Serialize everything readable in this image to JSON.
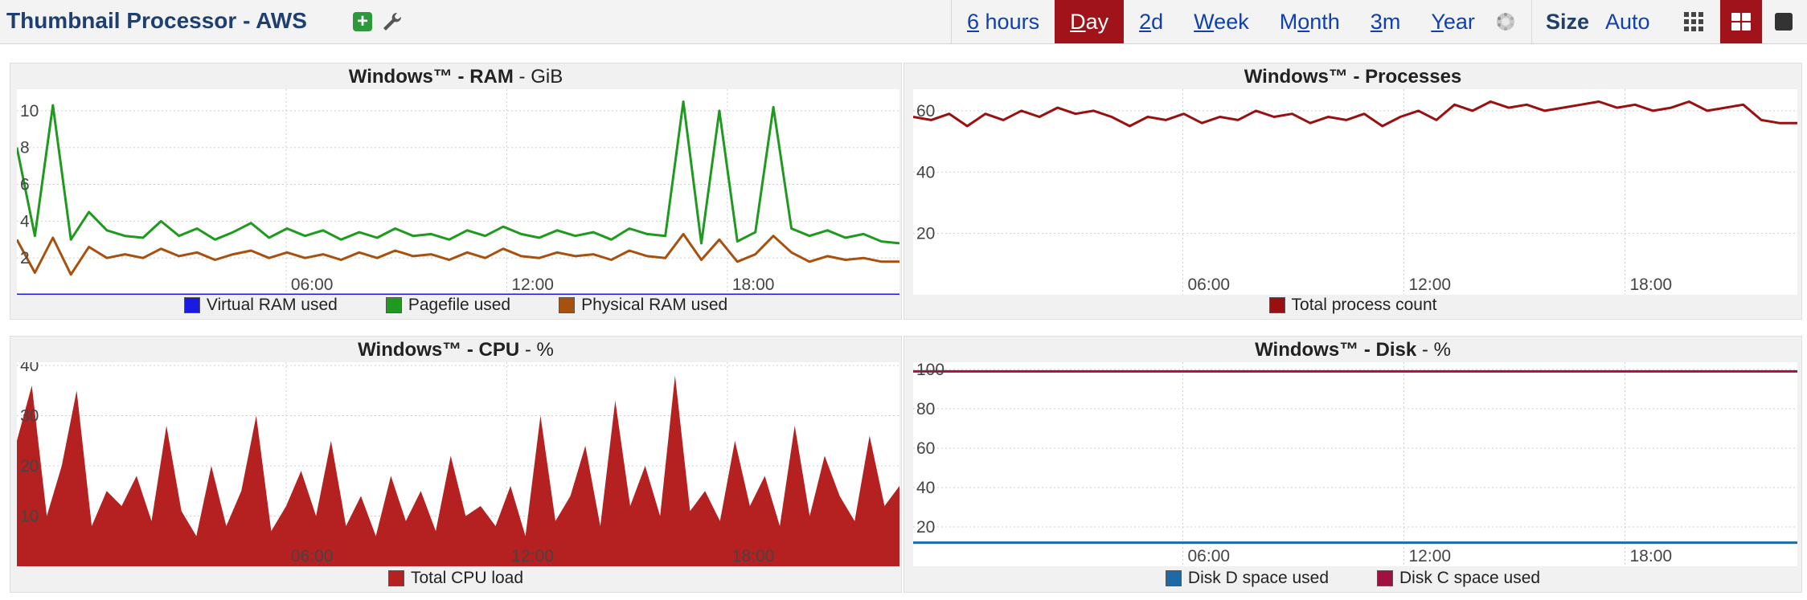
{
  "header": {
    "title": "Thumbnail Processor - AWS",
    "ranges": [
      {
        "pre": "",
        "key": "6",
        "post": " hours",
        "active": false
      },
      {
        "pre": "",
        "key": "D",
        "post": "ay",
        "active": true
      },
      {
        "pre": "",
        "key": "2",
        "post": "d",
        "active": false
      },
      {
        "pre": "",
        "key": "W",
        "post": "eek",
        "active": false
      },
      {
        "pre": "M",
        "key": "o",
        "post": "nth",
        "active": false
      },
      {
        "pre": "",
        "key": "3",
        "post": "m",
        "active": false
      },
      {
        "pre": "",
        "key": "Y",
        "post": "ear",
        "active": false
      }
    ],
    "size_label": "Size",
    "size_value": "Auto",
    "icons": [
      "add-icon",
      "wrench-icon",
      "spinner-icon",
      "grid-9-icon",
      "grid-4-icon",
      "grid-1-icon"
    ],
    "accent_color": "#a0131a",
    "title_color": "#1f3f6e",
    "link_color": "#1040b0"
  },
  "panels": {
    "ram": {
      "title_bold": "Windows™ - RAM",
      "title_unit": " - GiB"
    },
    "processes": {
      "title_bold": "Windows™ - Processes",
      "title_unit": ""
    },
    "cpu": {
      "title_bold": "Windows™ - CPU",
      "title_unit": " - %"
    },
    "disk": {
      "title_bold": "Windows™ - Disk",
      "title_unit": " - %"
    }
  },
  "chart_data": [
    {
      "id": "ram",
      "type": "line",
      "title": "Windows™ - RAM - GiB",
      "x_ticks": [
        "06:00",
        "12:00",
        "18:00"
      ],
      "y_ticks": [
        2,
        4,
        6,
        8,
        10
      ],
      "ylim": [
        0,
        11
      ],
      "grid": true,
      "legend": "bottom",
      "series": [
        {
          "name": "Virtual RAM used",
          "color": "#1a1ae0",
          "values": [
            0,
            0,
            0,
            0,
            0,
            0,
            0,
            0,
            0,
            0,
            0,
            0,
            0,
            0,
            0,
            0,
            0,
            0,
            0,
            0,
            0,
            0,
            0,
            0,
            0,
            0,
            0,
            0,
            0,
            0,
            0,
            0,
            0,
            0,
            0,
            0,
            0,
            0,
            0,
            0,
            0,
            0,
            0,
            0,
            0,
            0,
            0,
            0,
            0,
            0
          ]
        },
        {
          "name": "Pagefile used",
          "color": "#1e9a1e",
          "values": [
            8.0,
            3.2,
            10.3,
            3.0,
            4.5,
            3.5,
            3.2,
            3.1,
            4.0,
            3.2,
            3.6,
            3.0,
            3.4,
            3.9,
            3.1,
            3.6,
            3.2,
            3.5,
            3.0,
            3.4,
            3.1,
            3.6,
            3.2,
            3.3,
            3.0,
            3.5,
            3.2,
            3.7,
            3.3,
            3.1,
            3.5,
            3.2,
            3.4,
            3.0,
            3.6,
            3.3,
            3.2,
            10.5,
            2.8,
            10.0,
            2.9,
            3.4,
            10.2,
            3.6,
            3.2,
            3.5,
            3.1,
            3.3,
            2.9,
            2.8
          ]
        },
        {
          "name": "Physical RAM used",
          "color": "#a8500e",
          "values": [
            3.0,
            1.2,
            3.1,
            1.1,
            2.6,
            2.0,
            2.2,
            2.0,
            2.5,
            2.1,
            2.3,
            1.9,
            2.2,
            2.4,
            2.0,
            2.3,
            2.0,
            2.2,
            1.9,
            2.3,
            2.0,
            2.4,
            2.1,
            2.2,
            1.9,
            2.3,
            2.0,
            2.5,
            2.1,
            2.0,
            2.3,
            2.1,
            2.2,
            1.9,
            2.4,
            2.1,
            2.0,
            3.3,
            1.9,
            3.0,
            1.8,
            2.2,
            3.2,
            2.3,
            1.8,
            2.1,
            1.9,
            2.0,
            1.8,
            1.8
          ]
        }
      ]
    },
    {
      "id": "processes",
      "type": "line",
      "title": "Windows™ - Processes",
      "x_ticks": [
        "06:00",
        "12:00",
        "18:00"
      ],
      "y_ticks": [
        20,
        40,
        60
      ],
      "ylim": [
        0,
        66
      ],
      "grid": true,
      "legend": "bottom",
      "series": [
        {
          "name": "Total process count",
          "color": "#9a1010",
          "values": [
            58,
            57,
            59,
            55,
            59,
            57,
            60,
            58,
            61,
            59,
            60,
            58,
            55,
            58,
            57,
            59,
            56,
            58,
            57,
            60,
            58,
            59,
            56,
            58,
            57,
            59,
            55,
            58,
            60,
            57,
            62,
            60,
            63,
            61,
            62,
            60,
            61,
            62,
            63,
            61,
            62,
            60,
            61,
            63,
            60,
            61,
            62,
            57,
            56,
            56
          ]
        }
      ]
    },
    {
      "id": "cpu",
      "type": "area",
      "title": "Windows™ - CPU - %",
      "x_ticks": [
        "06:00",
        "12:00",
        "18:00"
      ],
      "y_ticks": [
        10,
        20,
        30,
        40
      ],
      "ylim": [
        0,
        40
      ],
      "grid": true,
      "legend": "bottom",
      "series": [
        {
          "name": "Total CPU load",
          "color": "#b52020",
          "values": [
            25,
            36,
            10,
            20,
            35,
            8,
            15,
            12,
            18,
            9,
            28,
            11,
            6,
            20,
            8,
            15,
            30,
            7,
            12,
            19,
            10,
            25,
            8,
            14,
            6,
            18,
            9,
            15,
            7,
            22,
            10,
            12,
            8,
            16,
            6,
            30,
            9,
            14,
            24,
            8,
            33,
            12,
            20,
            10,
            38,
            11,
            15,
            9,
            25,
            12,
            18,
            8,
            28,
            10,
            22,
            14,
            9,
            26,
            12,
            16
          ]
        }
      ]
    },
    {
      "id": "disk",
      "type": "line",
      "title": "Windows™ - Disk - %",
      "x_ticks": [
        "06:00",
        "12:00",
        "18:00"
      ],
      "y_ticks": [
        20,
        40,
        60,
        80,
        100
      ],
      "ylim": [
        0,
        102
      ],
      "grid": true,
      "legend": "bottom",
      "series": [
        {
          "name": "Disk D space used",
          "color": "#1f6aa5",
          "values": [
            12,
            12,
            12,
            12,
            12,
            12,
            12,
            12,
            12,
            12
          ]
        },
        {
          "name": "Disk C space used",
          "color": "#a01040",
          "values": [
            99,
            99,
            99,
            99,
            99,
            99,
            99,
            99,
            99,
            99
          ]
        }
      ]
    }
  ]
}
